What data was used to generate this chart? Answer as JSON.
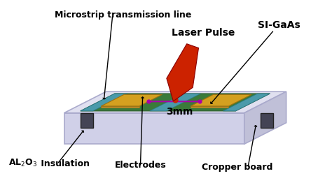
{
  "bg_color": "#ffffff",
  "outer_box": {
    "fc": "#cccce0",
    "ec": "#aaaacc",
    "lw": 1.5
  },
  "pcb_green": "#3a7a3a",
  "teal_color": "#4a9aaa",
  "gold_color": "#d4a020",
  "gold_shadow": "#c89030",
  "connector_color": "#444455",
  "gaas_color": "#2d6a2d",
  "laser_color": "#cc2200",
  "purple_color": "#aa00aa",
  "annotation_color": "#000000",
  "label_laser": "Laser Pulse",
  "label_microstrip": "Microstrip transmission line",
  "label_sigaas": "SI-GaAs",
  "label_3mm": "3mm",
  "label_al2o3": "AL",
  "label_insulation": " Insulation",
  "label_electrodes": "Electrodes",
  "label_cropper": "Cropper board"
}
